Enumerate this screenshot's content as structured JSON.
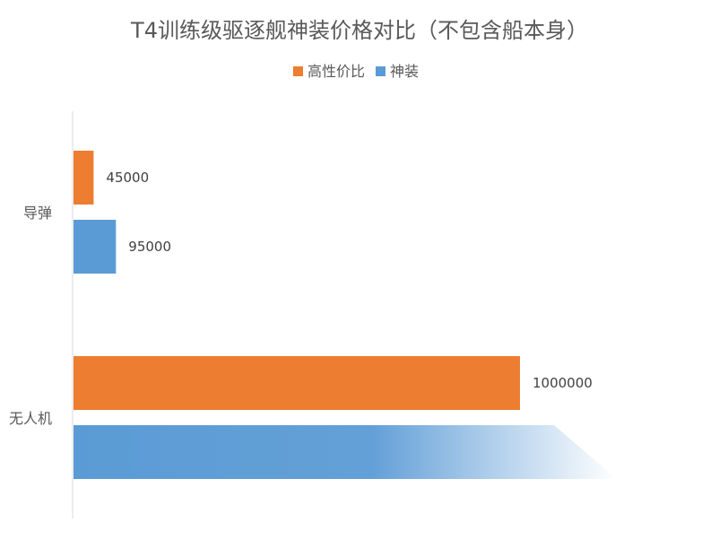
{
  "chart_data": {
    "type": "bar",
    "orientation": "horizontal",
    "title": "T4训练级驱逐舰神装价格对比（不包含船本身）",
    "categories": [
      "导弹",
      "无人机"
    ],
    "series": [
      {
        "name": "高性价比",
        "color": "#ED7D31",
        "values": [
          45000,
          1000000
        ],
        "labels": [
          "45000",
          "1000000"
        ]
      },
      {
        "name": "神装",
        "color": "#5B9BD5",
        "values": [
          95000,
          null
        ],
        "labels": [
          "95000",
          ""
        ]
      }
    ],
    "legend_position": "top",
    "grid": false
  }
}
